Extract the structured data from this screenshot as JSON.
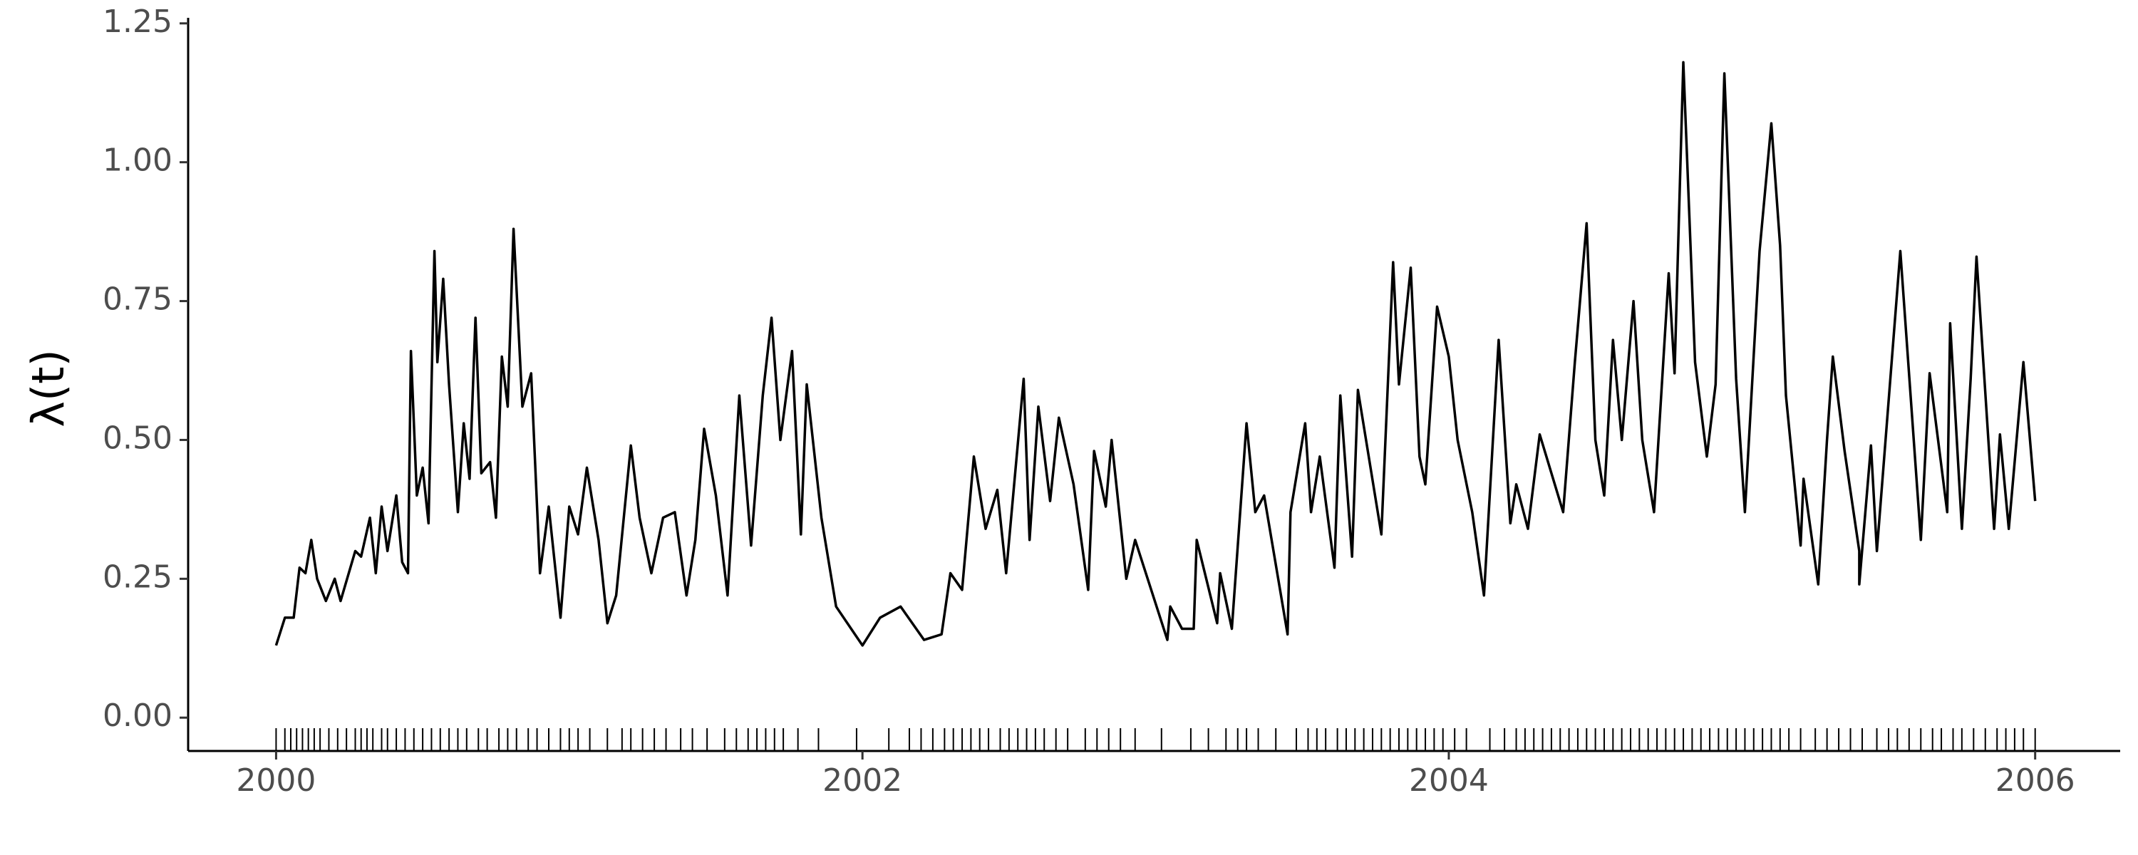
{
  "chart_data": {
    "type": "line",
    "y_label": "λ(t)",
    "color": "#000000",
    "x": [
      2000.0,
      2000.03,
      2000.06,
      2000.08,
      2000.1,
      2000.12,
      2000.14,
      2000.17,
      2000.2,
      2000.22,
      2000.27,
      2000.29,
      2000.32,
      2000.34,
      2000.36,
      2000.38,
      2000.41,
      2000.43,
      2000.45,
      2000.46,
      2000.48,
      2000.5,
      2000.52,
      2000.54,
      2000.55,
      2000.57,
      2000.59,
      2000.62,
      2000.64,
      2000.66,
      2000.68,
      2000.7,
      2000.73,
      2000.75,
      2000.77,
      2000.79,
      2000.81,
      2000.84,
      2000.87,
      2000.9,
      2000.93,
      2000.97,
      2001.0,
      2001.03,
      2001.06,
      2001.1,
      2001.13,
      2001.16,
      2001.21,
      2001.24,
      2001.28,
      2001.32,
      2001.36,
      2001.4,
      2001.43,
      2001.46,
      2001.5,
      2001.54,
      2001.58,
      2001.62,
      2001.66,
      2001.69,
      2001.72,
      2001.76,
      2001.79,
      2001.81,
      2001.86,
      2001.91,
      2002.0,
      2002.06,
      2002.13,
      2002.21,
      2002.27,
      2002.3,
      2002.34,
      2002.38,
      2002.42,
      2002.46,
      2002.49,
      2002.55,
      2002.57,
      2002.6,
      2002.64,
      2002.67,
      2002.72,
      2002.77,
      2002.79,
      2002.83,
      2002.85,
      2002.9,
      2002.93,
      2003.04,
      2003.05,
      2003.09,
      2003.13,
      2003.14,
      2003.21,
      2003.22,
      2003.26,
      2003.31,
      2003.34,
      2003.37,
      2003.45,
      2003.46,
      2003.51,
      2003.53,
      2003.56,
      2003.61,
      2003.63,
      2003.67,
      2003.69,
      2003.77,
      2003.81,
      2003.83,
      2003.87,
      2003.9,
      2003.92,
      2003.96,
      2004.0,
      2004.03,
      2004.08,
      2004.12,
      2004.17,
      2004.21,
      2004.23,
      2004.27,
      2004.31,
      2004.39,
      2004.43,
      2004.47,
      2004.5,
      2004.53,
      2004.56,
      2004.59,
      2004.63,
      2004.66,
      2004.7,
      2004.75,
      2004.77,
      2004.8,
      2004.84,
      2004.88,
      2004.91,
      2004.94,
      2004.98,
      2005.01,
      2005.06,
      2005.1,
      2005.13,
      2005.15,
      2005.2,
      2005.21,
      2005.26,
      2005.29,
      2005.31,
      2005.35,
      2005.4,
      2005.4,
      2005.44,
      2005.46,
      2005.54,
      2005.61,
      2005.64,
      2005.7,
      2005.71,
      2005.75,
      2005.78,
      2005.8,
      2005.86,
      2005.88,
      2005.91,
      2005.96,
      2006.0
    ],
    "values": [
      0.13,
      0.18,
      0.18,
      0.27,
      0.26,
      0.32,
      0.25,
      0.21,
      0.25,
      0.21,
      0.3,
      0.29,
      0.36,
      0.26,
      0.38,
      0.3,
      0.4,
      0.28,
      0.26,
      0.66,
      0.4,
      0.45,
      0.35,
      0.84,
      0.64,
      0.79,
      0.6,
      0.37,
      0.53,
      0.43,
      0.72,
      0.44,
      0.46,
      0.36,
      0.65,
      0.56,
      0.88,
      0.56,
      0.62,
      0.26,
      0.38,
      0.18,
      0.38,
      0.33,
      0.45,
      0.32,
      0.17,
      0.22,
      0.49,
      0.36,
      0.26,
      0.36,
      0.37,
      0.22,
      0.32,
      0.52,
      0.4,
      0.22,
      0.58,
      0.31,
      0.58,
      0.72,
      0.5,
      0.66,
      0.33,
      0.6,
      0.36,
      0.2,
      0.13,
      0.18,
      0.2,
      0.14,
      0.15,
      0.26,
      0.23,
      0.47,
      0.34,
      0.41,
      0.26,
      0.61,
      0.32,
      0.56,
      0.39,
      0.54,
      0.42,
      0.23,
      0.48,
      0.38,
      0.5,
      0.25,
      0.32,
      0.14,
      0.2,
      0.16,
      0.16,
      0.32,
      0.17,
      0.26,
      0.16,
      0.53,
      0.37,
      0.4,
      0.15,
      0.37,
      0.53,
      0.37,
      0.47,
      0.27,
      0.58,
      0.29,
      0.59,
      0.33,
      0.82,
      0.6,
      0.81,
      0.47,
      0.42,
      0.74,
      0.65,
      0.5,
      0.37,
      0.22,
      0.68,
      0.35,
      0.42,
      0.34,
      0.51,
      0.37,
      0.64,
      0.89,
      0.5,
      0.4,
      0.68,
      0.5,
      0.75,
      0.5,
      0.37,
      0.8,
      0.62,
      1.18,
      0.64,
      0.47,
      0.6,
      1.16,
      0.61,
      0.37,
      0.84,
      1.07,
      0.85,
      0.58,
      0.31,
      0.43,
      0.24,
      0.5,
      0.65,
      0.48,
      0.3,
      0.24,
      0.49,
      0.3,
      0.84,
      0.32,
      0.62,
      0.37,
      0.71,
      0.34,
      0.61,
      0.83,
      0.34,
      0.51,
      0.34,
      0.64,
      0.39
    ],
    "rug": [
      2000.0,
      2000.03,
      2000.05,
      2000.07,
      2000.09,
      2000.11,
      2000.13,
      2000.15,
      2000.18,
      2000.21,
      2000.24,
      2000.27,
      2000.29,
      2000.31,
      2000.33,
      2000.36,
      2000.38,
      2000.41,
      2000.44,
      2000.47,
      2000.5,
      2000.53,
      2000.56,
      2000.59,
      2000.62,
      2000.65,
      2000.69,
      2000.72,
      2000.76,
      2000.79,
      2000.82,
      2000.86,
      2000.89,
      2000.93,
      2000.97,
      2001.0,
      2001.03,
      2001.07,
      2001.13,
      2001.18,
      2001.21,
      2001.25,
      2001.29,
      2001.33,
      2001.38,
      2001.42,
      2001.47,
      2001.53,
      2001.57,
      2001.61,
      2001.64,
      2001.67,
      2001.7,
      2001.73,
      2001.78,
      2001.85,
      2001.98,
      2002.09,
      2002.16,
      2002.2,
      2002.24,
      2002.28,
      2002.31,
      2002.34,
      2002.37,
      2002.4,
      2002.43,
      2002.47,
      2002.5,
      2002.53,
      2002.56,
      2002.59,
      2002.62,
      2002.66,
      2002.7,
      2002.76,
      2002.8,
      2002.84,
      2002.88,
      2002.93,
      2003.02,
      2003.12,
      2003.18,
      2003.24,
      2003.28,
      2003.31,
      2003.35,
      2003.41,
      2003.48,
      2003.52,
      2003.55,
      2003.58,
      2003.62,
      2003.65,
      2003.68,
      2003.71,
      2003.74,
      2003.77,
      2003.8,
      2003.83,
      2003.86,
      2003.89,
      2003.92,
      2003.95,
      2003.98,
      2004.02,
      2004.06,
      2004.14,
      2004.19,
      2004.23,
      2004.26,
      2004.29,
      2004.32,
      2004.35,
      2004.38,
      2004.41,
      2004.44,
      2004.47,
      2004.5,
      2004.53,
      2004.56,
      2004.59,
      2004.62,
      2004.65,
      2004.68,
      2004.71,
      2004.74,
      2004.77,
      2004.8,
      2004.83,
      2004.86,
      2004.89,
      2004.92,
      2004.95,
      2004.98,
      2005.01,
      2005.04,
      2005.07,
      2005.1,
      2005.13,
      2005.16,
      2005.2,
      2005.25,
      2005.29,
      2005.33,
      2005.37,
      2005.41,
      2005.46,
      2005.5,
      2005.53,
      2005.57,
      2005.61,
      2005.65,
      2005.68,
      2005.72,
      2005.75,
      2005.79,
      2005.83,
      2005.87,
      2005.9,
      2005.93,
      2005.96,
      2006.0
    ],
    "xlim": [
      1999.7,
      2006.29
    ],
    "ylim": [
      -0.06,
      1.26
    ],
    "xticks": [
      2000,
      2002,
      2004,
      2006
    ],
    "yticks": [
      {
        "value": 0,
        "label": "0.00"
      },
      {
        "value": 0.25,
        "label": "0.25"
      },
      {
        "value": 0.5,
        "label": "0.50"
      },
      {
        "value": 0.75,
        "label": "0.75"
      },
      {
        "value": 1,
        "label": "1.00"
      },
      {
        "value": 1.25,
        "label": "1.25"
      }
    ]
  }
}
